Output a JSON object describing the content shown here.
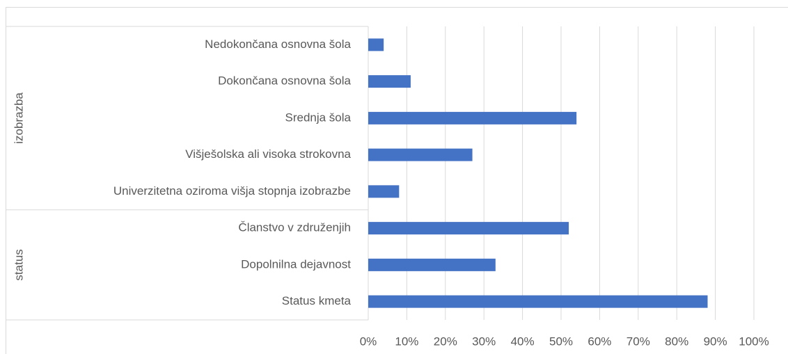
{
  "chart_data": {
    "type": "bar",
    "orientation": "horizontal",
    "color": "#4472c4",
    "grid": true,
    "groups": [
      {
        "name": "izobrazba",
        "categories": [
          "Nedokončana osnovna šola",
          "Dokončana osnovna šola",
          "Srednja šola",
          "Višješolska ali visoka strokovna",
          "Univerzitetna oziroma višja stopnja izobrazbe"
        ],
        "values": [
          4,
          11,
          54,
          27,
          8
        ]
      },
      {
        "name": "status",
        "categories": [
          "Članstvo v združenjih",
          "Dopolnilna dejavnost",
          "Status kmeta"
        ],
        "values": [
          52,
          33,
          88
        ]
      }
    ],
    "xlim": [
      0,
      100
    ],
    "xticks": [
      {
        "value": 0,
        "label": "0%"
      },
      {
        "value": 10,
        "label": "10%"
      },
      {
        "value": 20,
        "label": "20%"
      },
      {
        "value": 30,
        "label": "30%"
      },
      {
        "value": 40,
        "label": "40%"
      },
      {
        "value": 50,
        "label": "50%"
      },
      {
        "value": 60,
        "label": "60%"
      },
      {
        "value": 70,
        "label": "70%"
      },
      {
        "value": 80,
        "label": "80%"
      },
      {
        "value": 90,
        "label": "90%"
      },
      {
        "value": 100,
        "label": "100%"
      }
    ]
  }
}
